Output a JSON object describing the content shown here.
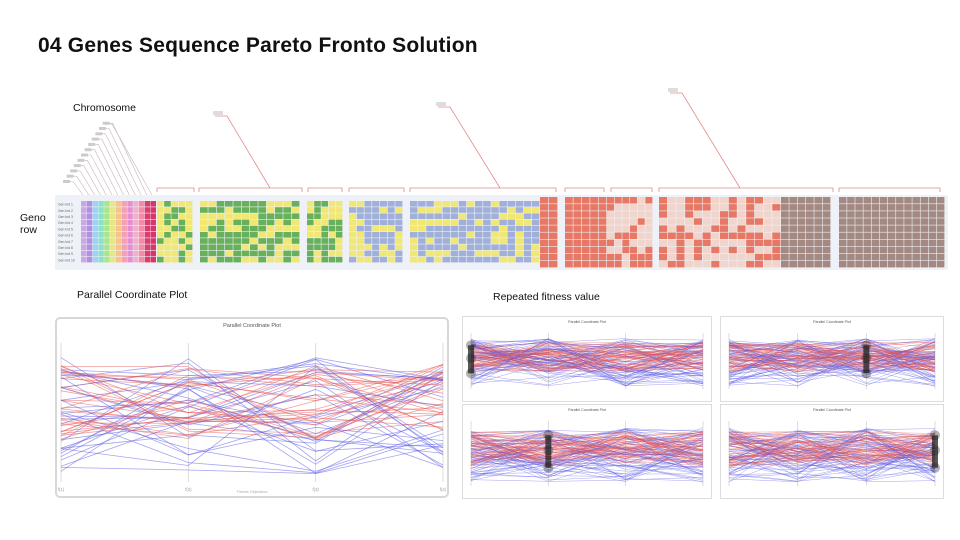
{
  "page": {
    "title": "04 Genes Sequence Pareto Fronto Solution",
    "chromosome_label": "Chromosome",
    "geno_row_label": "Geno row",
    "pcp_section_label": "Parallel Coordinate Plot",
    "repeated_section_label": "Repeated fitness value"
  },
  "row_labels": [
    "Gen Ind 1",
    "Gen Ind 2",
    "Gen Ind 3",
    "Gen Ind 4",
    "Gen Ind 5",
    "Gen Ind 6",
    "Gen Ind 7",
    "Gen Ind 8",
    "Gen Ind 9",
    "Gen Ind 10"
  ],
  "colors": {
    "green": "#5aa84a",
    "yellow": "#f0e566",
    "blue": "#97a9d4",
    "red": "#e66a55",
    "pale": "#f1d2c6",
    "brown": "#9a7d74",
    "pink": "#dc3d6e",
    "pcp_red": "#e8534f",
    "pcp_blue": "#5a5ae6"
  },
  "main_pcp": {
    "title": "Parallel Coordinate Plot",
    "axes": [
      "f(1)",
      "f(2)",
      "f(3)",
      "f(4)"
    ],
    "xlabel": "Fitness Objectives"
  },
  "mini_plots": [
    {
      "title": "Parallel Coordinate Plot",
      "highlight_axis": 0
    },
    {
      "title": "Parallel Coordinate Plot",
      "highlight_axis": 2
    },
    {
      "title": "Parallel Coordinate Plot",
      "highlight_axis": 1
    },
    {
      "title": "Parallel Coordinate Plot",
      "highlight_axis": 3
    }
  ]
}
